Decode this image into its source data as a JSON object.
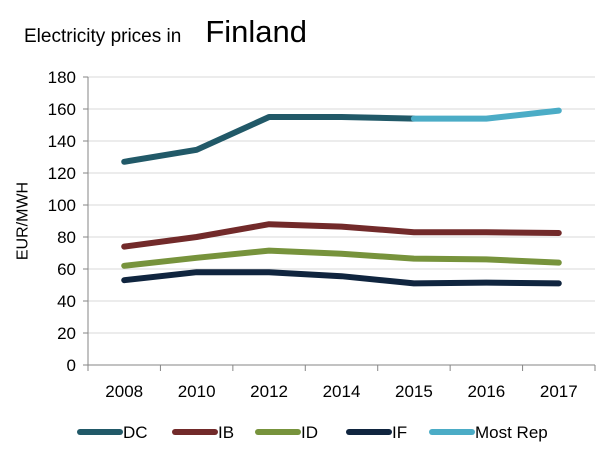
{
  "chart_data": {
    "type": "line",
    "title": "Electricity prices in",
    "title_country": "Finland",
    "xlabel": "",
    "ylabel": "EUR/MWH",
    "ylim": [
      0,
      180
    ],
    "yticks": [
      0,
      20,
      40,
      60,
      80,
      100,
      120,
      140,
      160,
      180
    ],
    "categories": [
      "2008",
      "2010",
      "2012",
      "2014",
      "2015",
      "2016",
      "2017"
    ],
    "grid": true,
    "legend_position": "bottom",
    "series": [
      {
        "name": "DC",
        "color": "#215968",
        "values": [
          127,
          134.5,
          155,
          155,
          154,
          null,
          null
        ]
      },
      {
        "name": "IB",
        "color": "#722A2A",
        "values": [
          74,
          80,
          88,
          86.5,
          83,
          83,
          82.5
        ]
      },
      {
        "name": "ID",
        "color": "#77933C",
        "values": [
          62,
          67,
          71.5,
          69.5,
          66.5,
          66,
          64
        ]
      },
      {
        "name": "IF",
        "color": "#10253F",
        "values": [
          53,
          58,
          58,
          55.5,
          51,
          51.5,
          51
        ]
      },
      {
        "name": "Most Rep",
        "color": "#4BACC6",
        "values": [
          null,
          null,
          null,
          null,
          154,
          154,
          159
        ]
      }
    ]
  }
}
